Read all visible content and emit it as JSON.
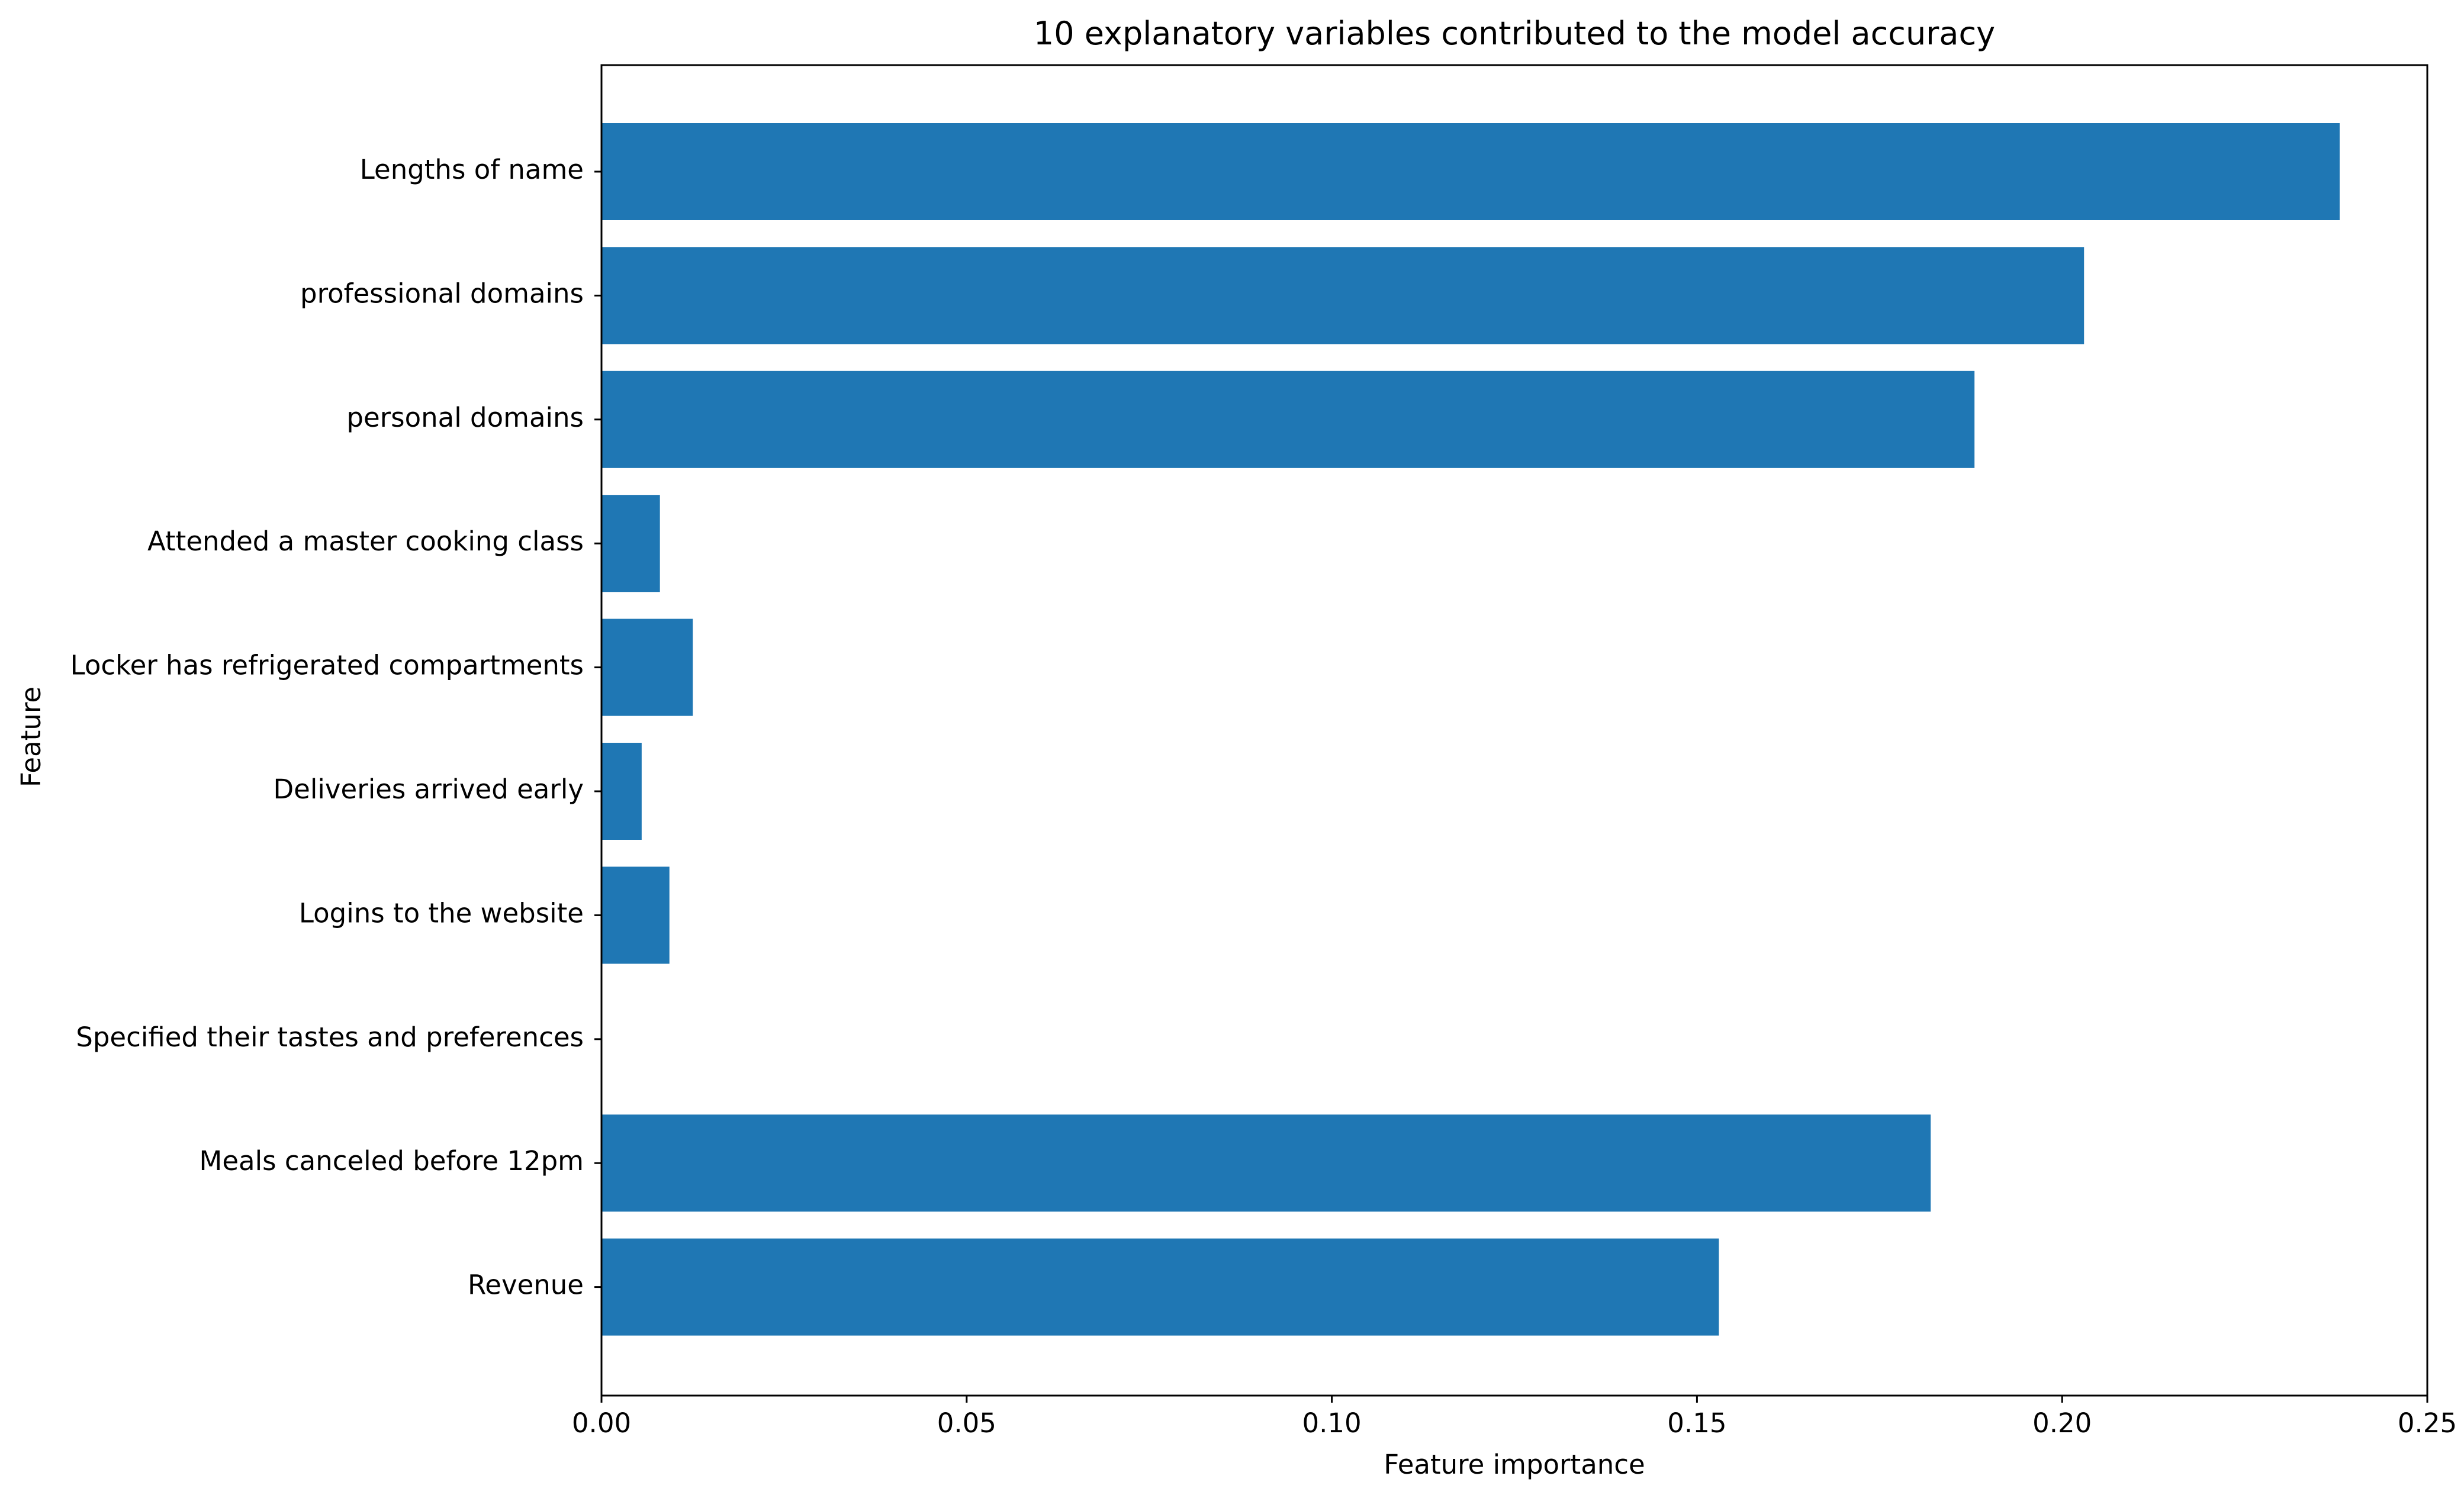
{
  "chart_data": {
    "type": "bar",
    "orientation": "horizontal",
    "title": "10 explanatory variables contributed to the model accuracy",
    "xlabel": "Feature importance",
    "ylabel": "Feature",
    "categories": [
      "Lengths of name",
      "professional domains",
      "personal domains",
      "Attended a master cooking class",
      "Locker has refrigerated compartments",
      "Deliveries arrived early",
      "Logins to the website",
      "Specified their tastes and preferences",
      "Meals canceled before 12pm",
      "Revenue"
    ],
    "values": [
      0.238,
      0.203,
      0.188,
      0.008,
      0.0125,
      0.0055,
      0.0093,
      0.0,
      0.182,
      0.153
    ],
    "xlim": [
      0,
      0.25
    ],
    "xticks": [
      "0.00",
      "0.05",
      "0.10",
      "0.15",
      "0.20",
      "0.25"
    ],
    "bar_color": "#1f77b4",
    "grid": false,
    "legend": "none"
  }
}
